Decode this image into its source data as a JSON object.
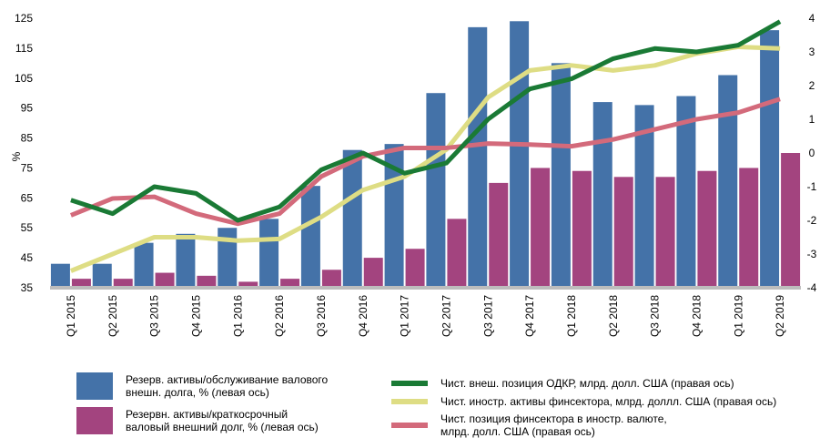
{
  "chart_data": {
    "type": "bar+line",
    "ylabel_left": "%",
    "left_axis": {
      "min": 35,
      "max": 125,
      "ticks": [
        35,
        45,
        55,
        65,
        75,
        85,
        95,
        105,
        115,
        125
      ]
    },
    "right_axis": {
      "min": -4,
      "max": 4,
      "ticks": [
        -4,
        -3,
        -2,
        -1,
        0,
        1,
        2,
        3,
        4
      ]
    },
    "categories": [
      "Q1 2015",
      "Q2 2015",
      "Q3 2015",
      "Q4 2015",
      "Q1 2016",
      "Q2 2016",
      "Q3 2016",
      "Q4 2016",
      "Q1 2017",
      "Q2 2017",
      "Q3 2017",
      "Q4 2017",
      "Q1 2018",
      "Q2 2018",
      "Q3 2018",
      "Q4 2018",
      "Q1 2019",
      "Q2 2019"
    ],
    "bar_series": [
      {
        "name": "Резерв. активы/обслуживание валового\nвнешн. долга, % (левая ось)",
        "color": "#4472a8",
        "values": [
          43,
          43,
          50,
          53,
          55,
          58,
          69,
          81,
          83,
          100,
          122,
          124,
          110,
          97,
          96,
          99,
          106,
          121
        ]
      },
      {
        "name": "Резервн. активы/краткосрочный\nваловый внешний долг, % (левая ось)",
        "color": "#a3447f",
        "values": [
          38,
          38,
          40,
          39,
          37,
          38,
          41,
          45,
          48,
          58,
          70,
          75,
          74,
          72,
          72,
          74,
          75,
          80
        ]
      }
    ],
    "line_series": [
      {
        "name": "Чист. внеш. позиция ОДКР, млрд. долл. США (правая ось)",
        "color": "#1a7a35",
        "values": [
          -1.4,
          -1.8,
          -1.0,
          -1.2,
          -2.0,
          -1.6,
          -0.5,
          0.0,
          -0.6,
          -0.3,
          1.0,
          1.9,
          2.2,
          2.8,
          3.1,
          3.0,
          3.2,
          3.9
        ]
      },
      {
        "name": "Чист. иностр. активы финсектора,  млрд. доллл. США (правая ось)",
        "color": "#dedd84",
        "values": [
          -3.5,
          -3.0,
          -2.5,
          -2.5,
          -2.6,
          -2.55,
          -1.9,
          -1.1,
          -0.7,
          0.1,
          1.65,
          2.45,
          2.6,
          2.45,
          2.6,
          2.95,
          3.15,
          3.1
        ]
      },
      {
        "name": "Чист. позиция финсектора в иностр. валюте,\n млрд. долл. США (правая ось)",
        "color": "#d36a7b",
        "values": [
          -1.85,
          -1.35,
          -1.3,
          -1.8,
          -2.1,
          -1.8,
          -0.7,
          -0.1,
          0.15,
          0.15,
          0.28,
          0.25,
          0.2,
          0.4,
          0.7,
          1.0,
          1.2,
          1.6
        ]
      }
    ]
  }
}
